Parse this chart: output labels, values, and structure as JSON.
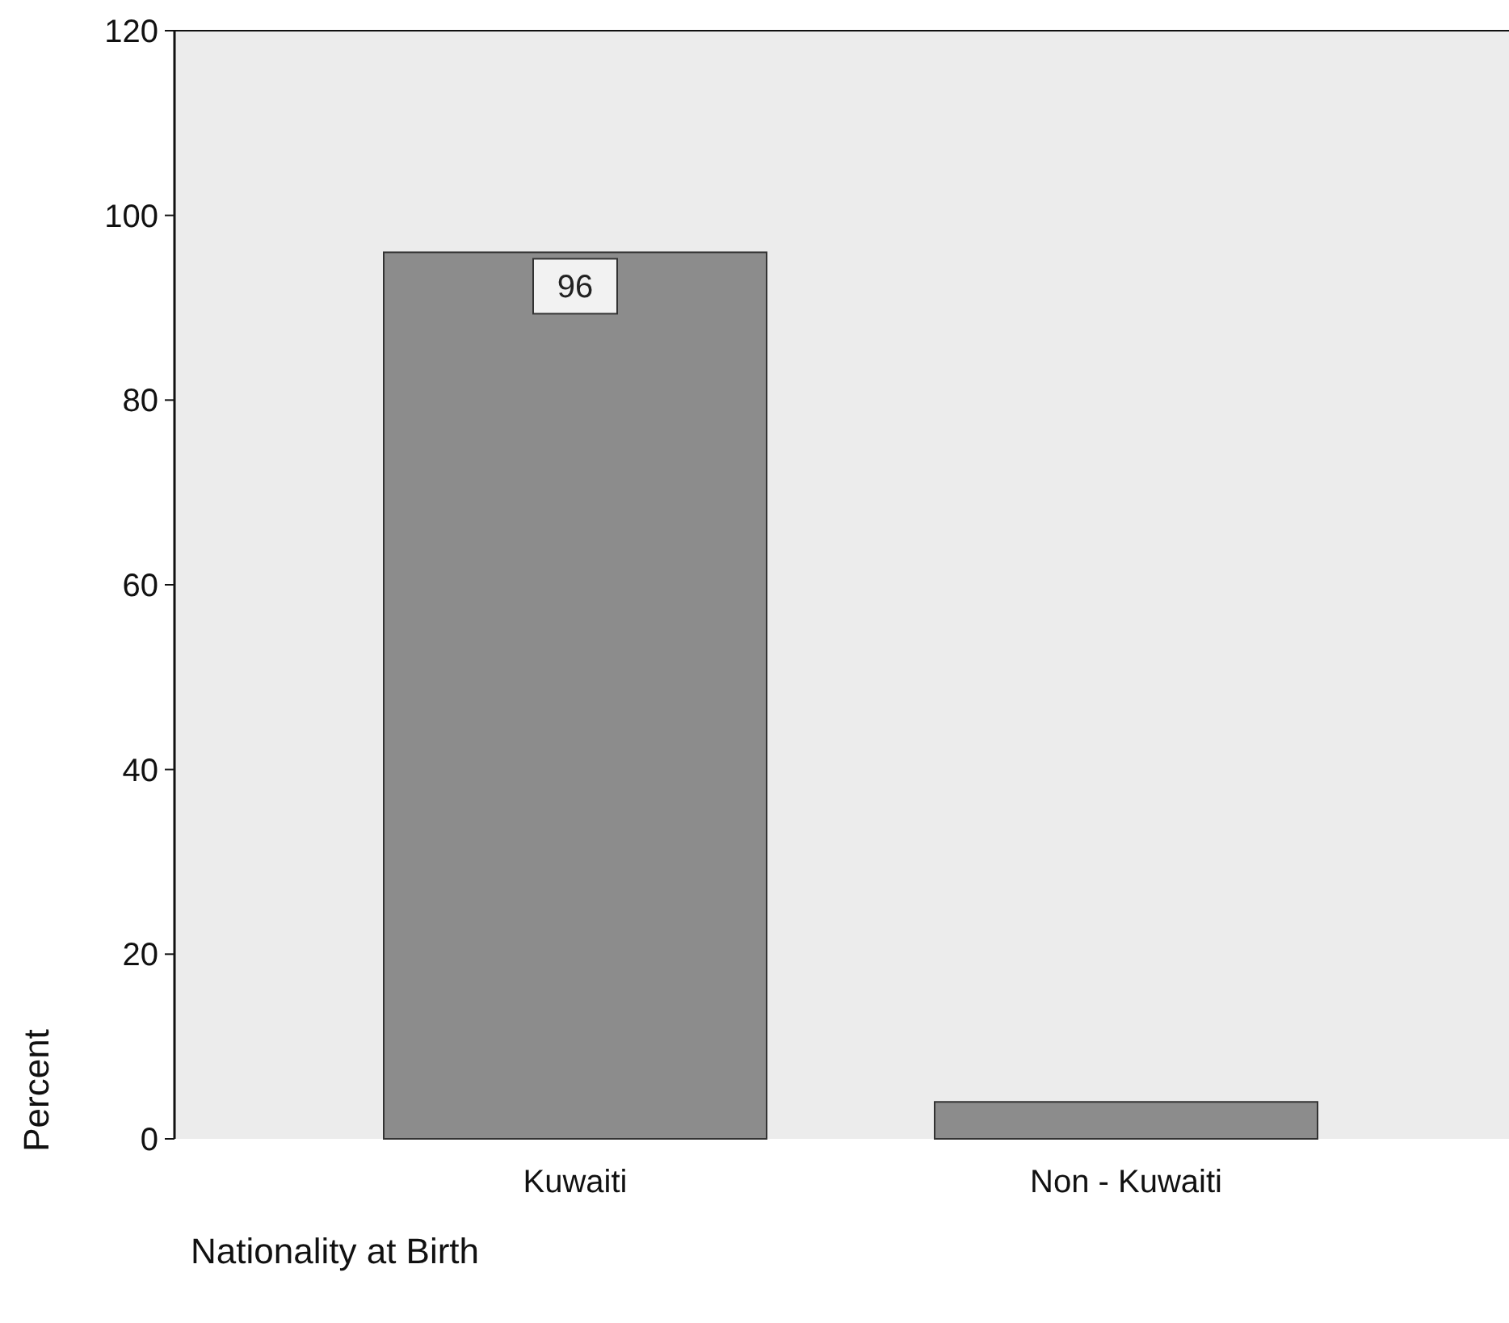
{
  "chart_data": {
    "type": "bar",
    "categories": [
      "Kuwaiti",
      "Non - Kuwaiti"
    ],
    "values": [
      96,
      4
    ],
    "color": "#8c8c8c",
    "value_labels": [
      "96",
      null
    ],
    "ylim": [
      0,
      120
    ],
    "yticks": [
      0,
      20,
      40,
      60,
      80,
      100,
      120
    ],
    "ylabel": "Percent",
    "xlabel": "Nationality at Birth",
    "grid": false
  }
}
